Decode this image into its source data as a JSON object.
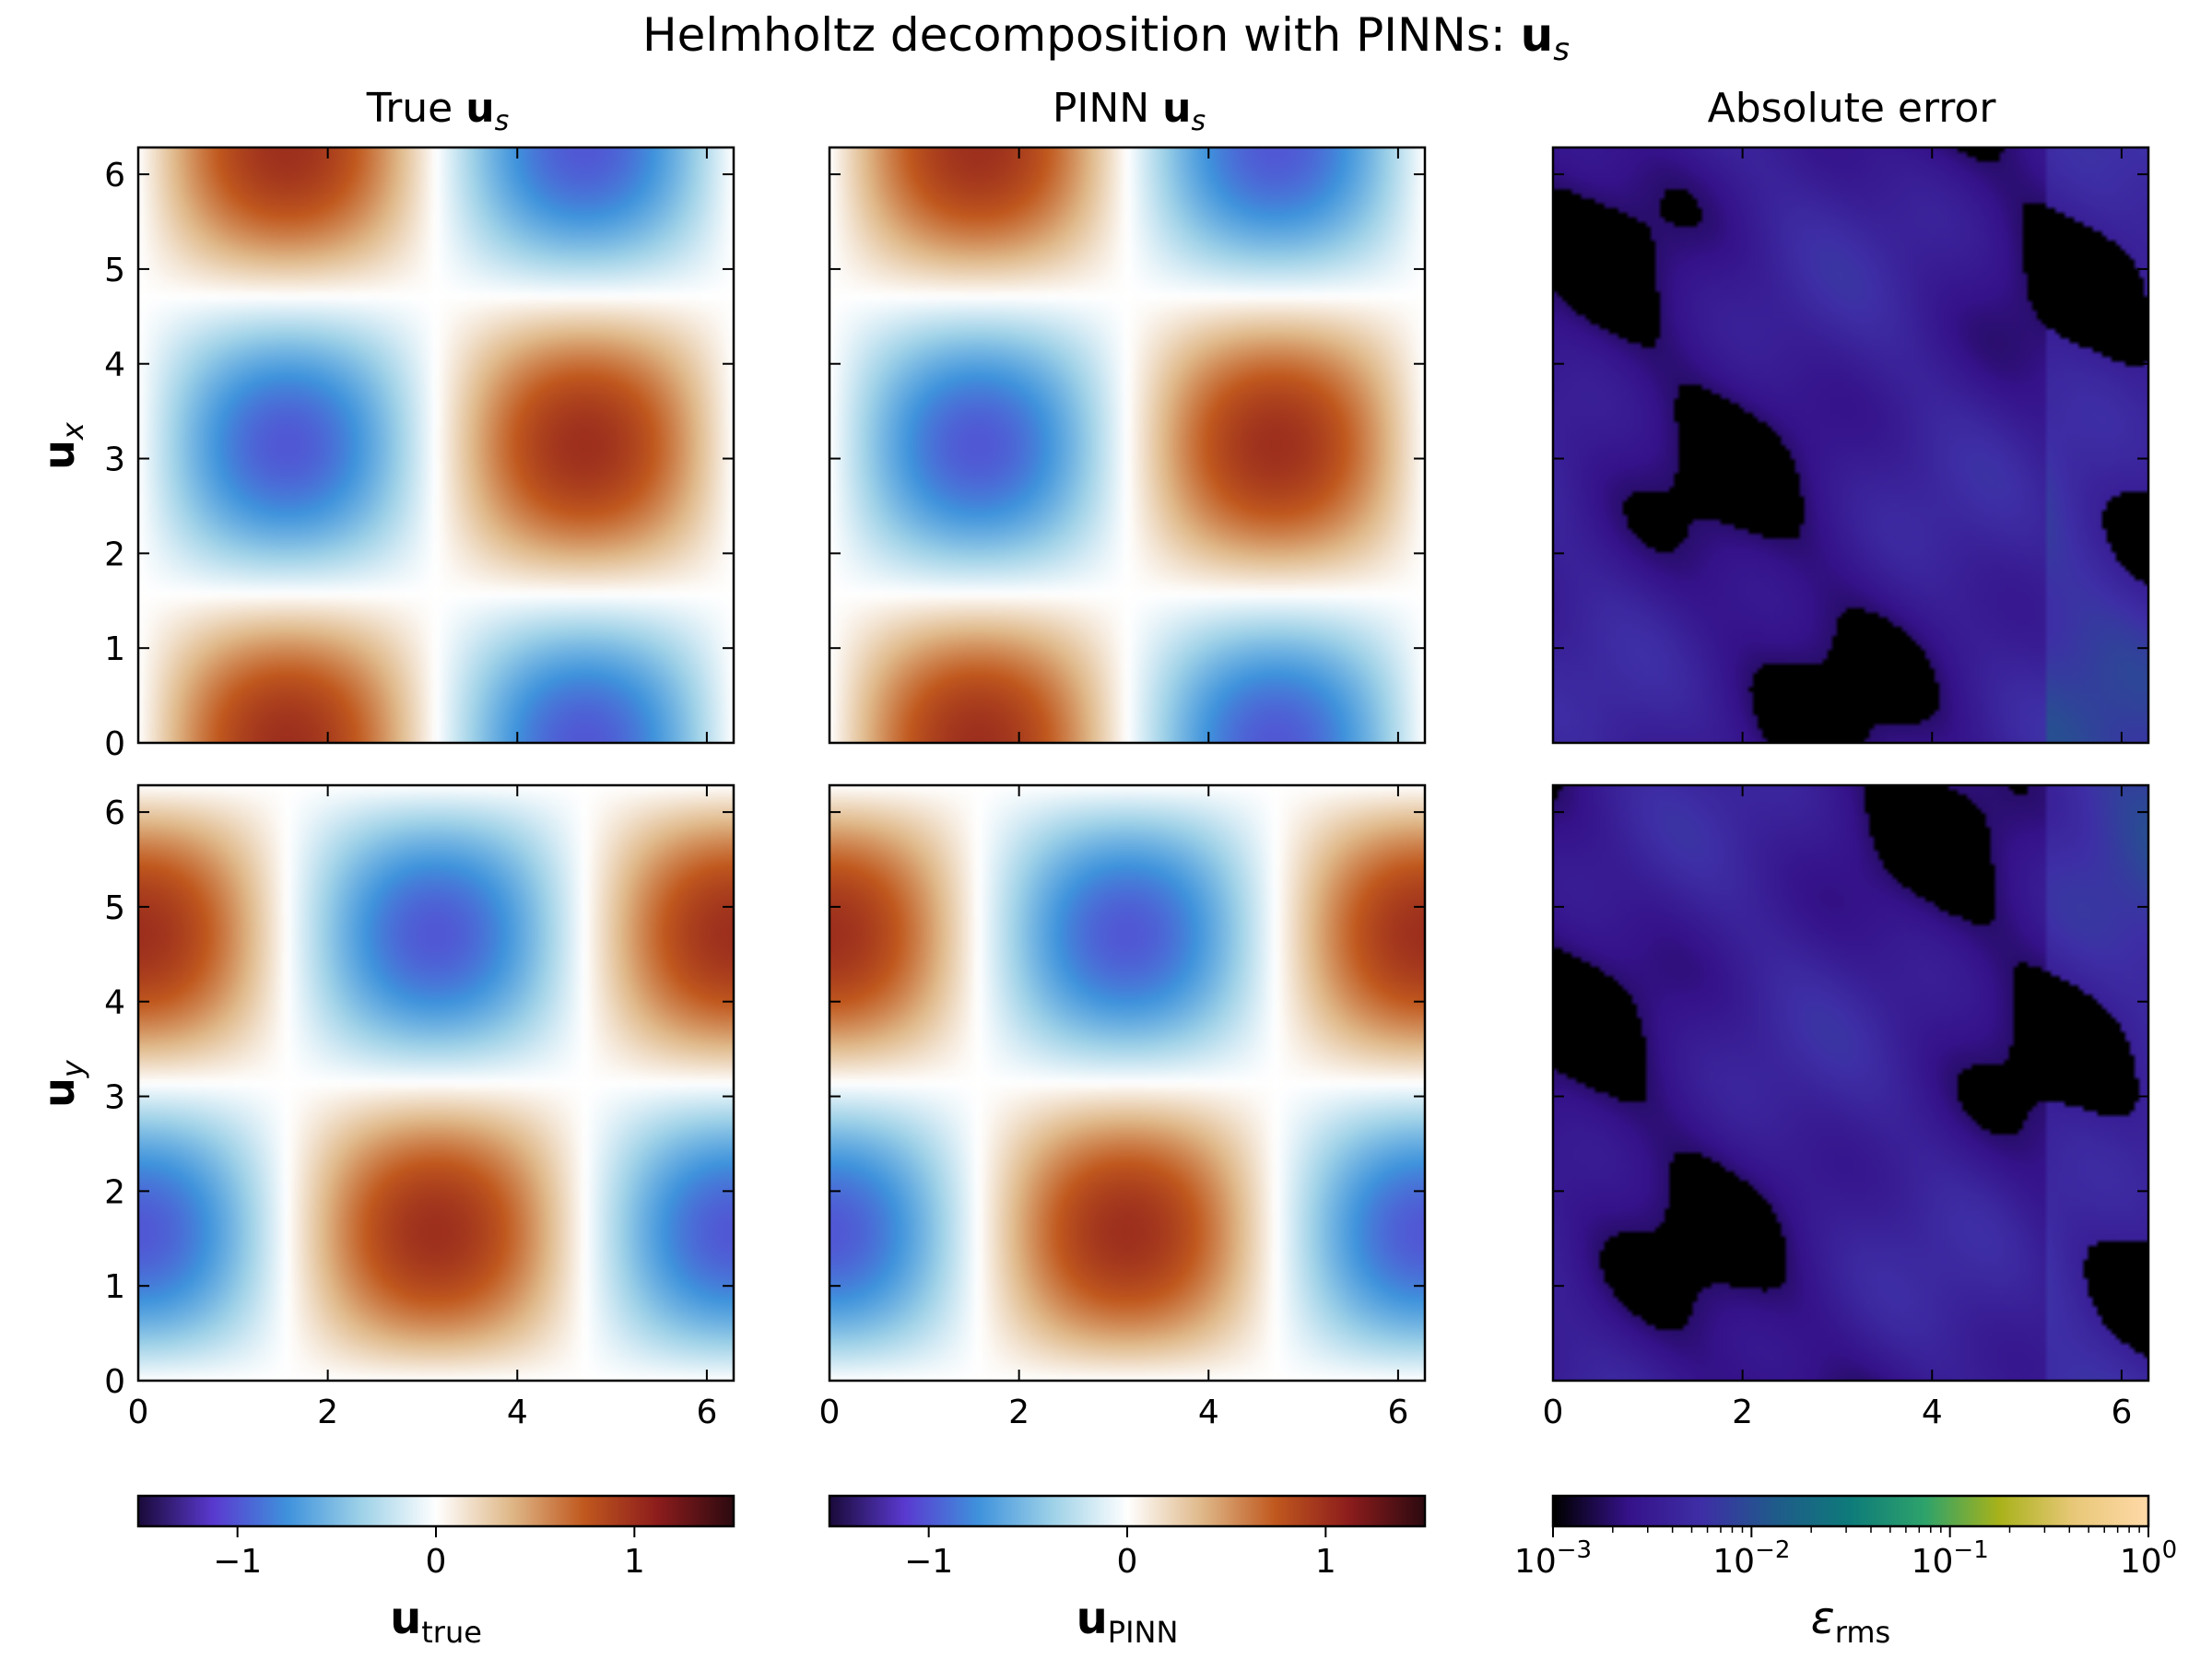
{
  "figure": {
    "title_text": "Helmholtz decomposition with PINNs: ",
    "title_bold": "u",
    "title_sub": "s"
  },
  "columns": [
    {
      "text": "True ",
      "bold": "u",
      "sub": "s"
    },
    {
      "text": "PINN ",
      "bold": "u",
      "sub": "s"
    },
    {
      "text": "Absolute error",
      "bold": "",
      "sub": ""
    }
  ],
  "rows": [
    {
      "bold": "u",
      "sub": "x"
    },
    {
      "bold": "u",
      "sub": "y"
    }
  ],
  "colorbars": [
    {
      "bold": "u",
      "sub": "true",
      "ticks": [
        "−1",
        "0",
        "1"
      ],
      "tick_values": [
        -1,
        0,
        1
      ],
      "range": [
        -1.5,
        1.5
      ],
      "scale": "linear"
    },
    {
      "bold": "u",
      "sub": "PINN",
      "ticks": [
        "−1",
        "0",
        "1"
      ],
      "tick_values": [
        -1,
        0,
        1
      ],
      "range": [
        -1.5,
        1.5
      ],
      "scale": "linear"
    },
    {
      "italic": "ε",
      "sub": "rms",
      "ticks": [
        "10",
        "10",
        "10",
        "10"
      ],
      "tick_exps": [
        "−3",
        "−2",
        "−1",
        "0"
      ],
      "tick_values": [
        0.001,
        0.01,
        0.1,
        1
      ],
      "range": [
        0.001,
        1
      ],
      "scale": "log"
    }
  ],
  "chart_data": [
    {
      "type": "heatmap",
      "panel": "true-ux",
      "field": "sin(x)·cos(y)",
      "xlim": [
        0,
        6.283
      ],
      "ylim": [
        0,
        6.283
      ],
      "xticks": [
        "0",
        "2",
        "4",
        "6"
      ],
      "yticks": [
        "0",
        "1",
        "2",
        "3",
        "4",
        "5",
        "6"
      ],
      "colormap": "diverging",
      "vmin": -1.5,
      "vmax": 1.5
    },
    {
      "type": "heatmap",
      "panel": "pinn-ux",
      "field": "sin(x)·cos(y)",
      "xlim": [
        0,
        6.283
      ],
      "ylim": [
        0,
        6.283
      ],
      "xticks": [
        "0",
        "2",
        "4",
        "6"
      ],
      "colormap": "diverging",
      "vmin": -1.5,
      "vmax": 1.5
    },
    {
      "type": "heatmap",
      "panel": "error-ux",
      "xlim": [
        0,
        6.283
      ],
      "ylim": [
        0,
        6.283
      ],
      "xticks": [
        "0",
        "2",
        "4",
        "6"
      ],
      "colormap": "sequential-log",
      "vmin": 0.001,
      "vmax": 1
    },
    {
      "type": "heatmap",
      "panel": "true-uy",
      "field": "-cos(x)·sin(y)",
      "xlim": [
        0,
        6.283
      ],
      "ylim": [
        0,
        6.283
      ],
      "xticks": [
        "0",
        "2",
        "4",
        "6"
      ],
      "yticks": [
        "0",
        "1",
        "2",
        "3",
        "4",
        "5",
        "6"
      ],
      "colormap": "diverging",
      "vmin": -1.5,
      "vmax": 1.5
    },
    {
      "type": "heatmap",
      "panel": "pinn-uy",
      "field": "-cos(x)·sin(y)",
      "xlim": [
        0,
        6.283
      ],
      "ylim": [
        0,
        6.283
      ],
      "xticks": [
        "0",
        "2",
        "4",
        "6"
      ],
      "colormap": "diverging",
      "vmin": -1.5,
      "vmax": 1.5
    },
    {
      "type": "heatmap",
      "panel": "error-uy",
      "xlim": [
        0,
        6.283
      ],
      "ylim": [
        0,
        6.283
      ],
      "xticks": [
        "0",
        "2",
        "4",
        "6"
      ],
      "colormap": "sequential-log",
      "vmin": 0.001,
      "vmax": 1
    }
  ],
  "colors": {
    "diverging": [
      "#2d0a10",
      "#8c1c1c",
      "#c0581e",
      "#e0b98a",
      "#ffffff",
      "#9fd2e8",
      "#3f93dc",
      "#5a3ad0",
      "#1b0b3c"
    ],
    "sequential": [
      "#000000",
      "#35128a",
      "#3e2fa6",
      "#1f5c8a",
      "#0e7c7a",
      "#2ea36b",
      "#a8b21a",
      "#e8c878",
      "#ffd9a8"
    ]
  }
}
